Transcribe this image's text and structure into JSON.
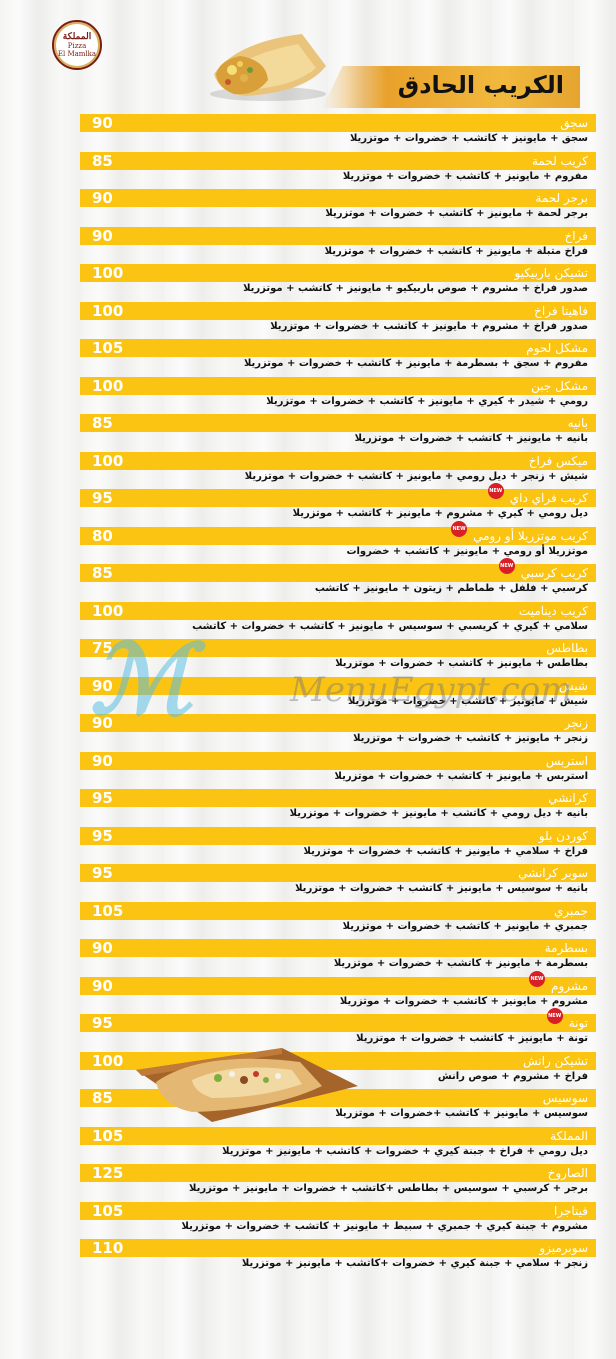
{
  "logo": {
    "arabic": "المملكة",
    "line1": "Pizza",
    "line2": "El Mamlka"
  },
  "title": "الكريب الحادق",
  "watermark": "MenuEgypt.com",
  "items": [
    {
      "name": "سجق",
      "price": "90",
      "desc": "سجق + مايونيز + كاتشب + خضروات + موتزريلا"
    },
    {
      "name": "كريب لحمة",
      "price": "85",
      "desc": "مفروم + مايونيز + كاتشب + خضروات + موتزريلا"
    },
    {
      "name": "برجر لحمة",
      "price": "90",
      "desc": "برجر لحمة + مايونيز + كاتشب + خضروات + موتزريلا"
    },
    {
      "name": "فراخ",
      "price": "90",
      "desc": "فراخ متبلة + مايونيز + كاتشب + خضروات + موتزريلا"
    },
    {
      "name": "تشيكن باربيكيو",
      "price": "100",
      "desc": "صدور فراخ + مشروم + صوص باربيكيو + مايونيز + كاتشب + موتزريلا"
    },
    {
      "name": "فاهيتا فراخ",
      "price": "100",
      "desc": "صدور فراخ + مشروم + مايونيز + كاتشب + خضروات + موتزريلا"
    },
    {
      "name": "مشكل لحوم",
      "price": "105",
      "desc": "مفروم + سجق + بسطرمة + مايونيز + كاتشب + خضروات + موتزريلا"
    },
    {
      "name": "مشكل جبن",
      "price": "100",
      "desc": "رومي + شيدر + كيري + مايونيز + كاتشب + خضروات + موتزريلا"
    },
    {
      "name": "بانيه",
      "price": "85",
      "desc": "بانيه + مايونيز + كاتشب + خضروات + موتزريلا"
    },
    {
      "name": "ميكس فراخ",
      "price": "100",
      "desc": "شيش + زنجر + ديل رومي + مايونيز + كاتشب + خضروات + موتزريلا"
    },
    {
      "name": "كريب فراي داي",
      "price": "95",
      "desc": "ديل رومي + كيري + مشروم + مايونيز + كاتشب + موتزريلا",
      "new": true
    },
    {
      "name": "كريب موتزريلا أو رومي",
      "price": "80",
      "desc": "موتزريلا أو رومي + مايونيز + كاتشب + خضروات",
      "new": true
    },
    {
      "name": "كريب كرسبي",
      "price": "85",
      "desc": "كرسبي + فلفل + طماطم + زيتون + مايونيز + كاتشب",
      "new": true
    },
    {
      "name": "كريب ديناميت",
      "price": "100",
      "desc": "سلامي + كيري + كريسبي + سوسيس + مايونيز + كاتشب + خضروات + كاتشب"
    },
    {
      "name": "بطاطس",
      "price": "75",
      "desc": "بطاطس + مايونيز + كاتشب + خضروات + موتزريلا"
    },
    {
      "name": "شيش",
      "price": "90",
      "desc": "شيش + مايونيز + كاتشب + خضروات + موتزريلا"
    },
    {
      "name": "زنجر",
      "price": "90",
      "desc": "زنجر + مايونيز + كاتشب + خضروات + موتزريلا"
    },
    {
      "name": "استربس",
      "price": "90",
      "desc": "استربس + مايونيز + كاتشب + خضروات + موتزريلا"
    },
    {
      "name": "كرانشي",
      "price": "95",
      "desc": "بانيه + ديل رومي + كاتشب + مايونيز + خضروات + موتزريلا"
    },
    {
      "name": "كوردن بلو",
      "price": "95",
      "desc": "فراخ + سلامي + مايونيز + كاتشب + خضروات + موتزريلا"
    },
    {
      "name": "سوبر كرانشي",
      "price": "95",
      "desc": "بانيه + سوسيس + مايونيز + كاتشب + خضروات + موتزريلا"
    },
    {
      "name": "جمبري",
      "price": "105",
      "desc": "جمبري + مايونيز + كاتشب + خضروات + موتزريلا"
    },
    {
      "name": "بسطرمة",
      "price": "90",
      "desc": "بسطرمة + مايونيز + كاتشب + خضروات + موتزريلا"
    },
    {
      "name": "مشروم",
      "price": "90",
      "desc": "مشروم + مايونيز + كاتشب + خضروات + موتزريلا",
      "new": true
    },
    {
      "name": "تونة",
      "price": "95",
      "desc": "تونة + مايونيز + كاتشب + خضروات + موتزريلا",
      "new": true
    },
    {
      "name": "تشيكن رانش",
      "price": "100",
      "desc": "فراخ + مشروم + صوص رانش"
    },
    {
      "name": "سوسيس",
      "price": "85",
      "desc": "سوسيس + مايونيز + كاتشب +خضروات + موتزريلا"
    },
    {
      "name": "المملكة",
      "price": "105",
      "desc": "ديل رومي + فراخ + جبنة كيري + خضروات + كاتشب + مايونيز + موتزريلا"
    },
    {
      "name": "الصاروخ",
      "price": "125",
      "desc": "برجر + كرسبي + سوسيس + بطاطس +كاتشب + خضروات + مايونيز + موتزريلا"
    },
    {
      "name": "فيتاجرا",
      "price": "105",
      "desc": "مشروم + جبنة كيري + جمبري + سبيط + مايونيز + كاتشب + خضروات + موتزريلا"
    },
    {
      "name": "سوبرميزو",
      "price": "110",
      "desc": "زنجر + سلامي + جبنة كيري + خضروات +كاتشب + مايونيز + موتزريلا"
    }
  ]
}
